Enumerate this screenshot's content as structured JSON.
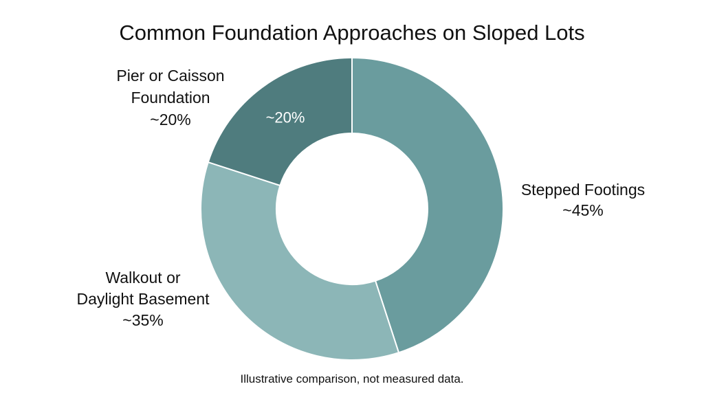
{
  "chart_data": {
    "type": "pie",
    "donut": true,
    "title": "Common Foundation Approaches on Sloped Lots",
    "note": "Illustrative comparison, not measured data.",
    "slices": [
      {
        "name": "Stepped Footings",
        "value": 45,
        "label_lines": [
          "Stepped Footings",
          "~45%"
        ],
        "color": "#6a9c9e"
      },
      {
        "name": "Walkout or Daylight Basement",
        "value": 35,
        "label_lines": [
          "Walkout or",
          "Daylight Basement",
          "~35%"
        ],
        "color": "#8cb6b7"
      },
      {
        "name": "Pier or Caisson Foundation",
        "value": 20,
        "label_lines": [
          "Pier or Caisson",
          "Foundation",
          "~20%"
        ],
        "inner_label": "~20%",
        "color": "#4f7c7e"
      }
    ]
  }
}
